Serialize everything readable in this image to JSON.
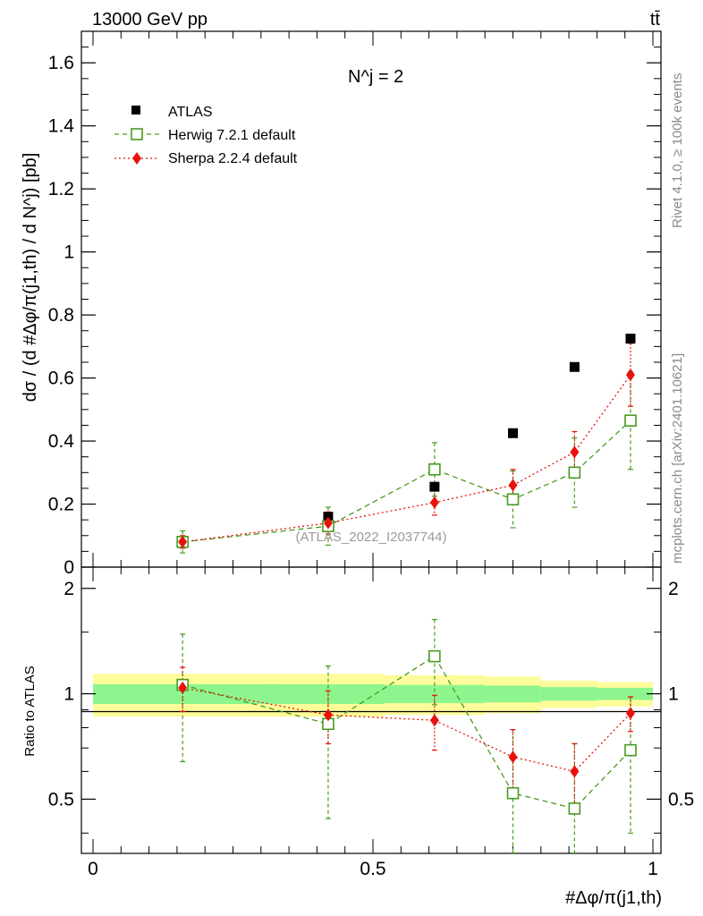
{
  "header": {
    "left": "13000 GeV pp",
    "right": "tt̄"
  },
  "side_text": {
    "rivet": "Rivet 4.1.0, ≥ 100k events",
    "source": "mcplots.cern.ch [arXiv:2401.10621]"
  },
  "watermark": "(ATLAS_2022_I2037744)",
  "chart_data": {
    "type": "scatter",
    "title": "N^j = 2",
    "xlabel": "#Δφ/π(j1,th)",
    "ylabel": "dσ / (d #Δφ/π(j1,th) / d N^j) [pb]",
    "ratio_ylabel": "Ratio to ATLAS",
    "xlim": [
      0,
      1
    ],
    "ylim": [
      0,
      1.7
    ],
    "ratio_ylim": [
      0.35,
      2.3
    ],
    "x_ticks": [
      0,
      0.5,
      1
    ],
    "x_tick_labels": [
      "0",
      "0.5",
      "1"
    ],
    "y_ticks": [
      0,
      0.2,
      0.4,
      0.6,
      0.8,
      1,
      1.2,
      1.4,
      1.6
    ],
    "y_tick_labels": [
      "0",
      "0.2",
      "0.4",
      "0.6",
      "0.8",
      "1",
      "1.2",
      "1.4",
      "1.6"
    ],
    "ratio_ticks": [
      0.5,
      1,
      2
    ],
    "ratio_tick_labels": [
      "0.5",
      "1",
      "2"
    ],
    "bins": [
      [
        0,
        0.32
      ],
      [
        0.32,
        0.52
      ],
      [
        0.52,
        0.7
      ],
      [
        0.7,
        0.8
      ],
      [
        0.8,
        0.9
      ],
      [
        0.9,
        1.0
      ]
    ],
    "x": [
      0.16,
      0.42,
      0.61,
      0.75,
      0.86,
      0.96
    ],
    "series": [
      {
        "name": "ATLAS",
        "color": "#000000",
        "marker": "square-filled",
        "values": [
          0.08,
          0.16,
          0.255,
          0.425,
          0.635,
          0.725
        ]
      },
      {
        "name": "Herwig 7.2.1 default",
        "color": "#4a9a1e",
        "marker": "square-open",
        "values": [
          0.08,
          0.13,
          0.31,
          0.215,
          0.3,
          0.465
        ],
        "err": [
          0.035,
          0.06,
          0.085,
          0.09,
          0.11,
          0.155
        ],
        "ratio": [
          1.06,
          0.82,
          1.28,
          0.52,
          0.47,
          0.69
        ],
        "ratio_err": [
          0.42,
          0.38,
          0.35,
          0.27,
          0.25,
          0.29
        ]
      },
      {
        "name": "Sherpa 2.2.4 default",
        "color": "#e8120c",
        "marker": "diamond-filled",
        "values": [
          0.08,
          0.14,
          0.205,
          0.26,
          0.365,
          0.61
        ],
        "err": [
          0.02,
          0.035,
          0.04,
          0.05,
          0.065,
          0.1
        ],
        "ratio": [
          1.04,
          0.87,
          0.84,
          0.66,
          0.6,
          0.88
        ],
        "ratio_err": [
          0.15,
          0.15,
          0.15,
          0.13,
          0.12,
          0.1
        ]
      }
    ],
    "ratio_bands": {
      "outer": [
        0.14,
        0.14,
        0.13,
        0.12,
        0.09,
        0.08
      ],
      "inner": [
        0.065,
        0.065,
        0.06,
        0.055,
        0.045,
        0.04
      ]
    },
    "band_colors": {
      "outer": "#fdfc9a",
      "inner": "#8ef58e"
    }
  }
}
